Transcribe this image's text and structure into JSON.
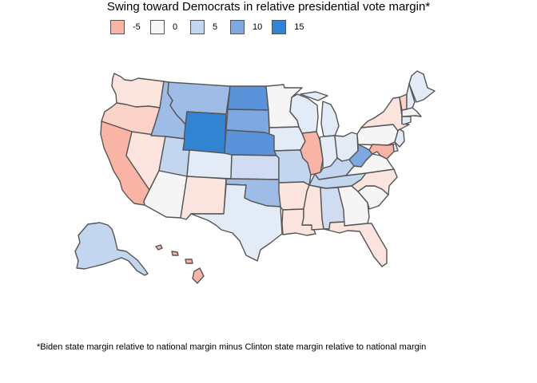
{
  "title": "Swing toward Democrats in relative presidential vote margin*",
  "legend": {
    "items": [
      {
        "label": "-5",
        "color": "#f9b4a6"
      },
      {
        "label": "0",
        "color": "#f7f7f7"
      },
      {
        "label": "5",
        "color": "#c3d6f0"
      },
      {
        "label": "10",
        "color": "#7fa8e0"
      },
      {
        "label": "15",
        "color": "#3283d1"
      }
    ]
  },
  "color_scale": {
    "neg_5": "#f9b4a6",
    "neg_3": "#fbd2c8",
    "neg_1": "#fbe4de",
    "zero": "#f5f5f5",
    "pos_1": "#e3ebf6",
    "pos_3": "#cfdcf1",
    "pos_5": "#c3d6f0",
    "pos_8": "#9fbce6",
    "pos_10": "#7fa8e0",
    "pos_12": "#5b93db",
    "pos_15": "#3283d1"
  },
  "states": {
    "WA": "neg_1",
    "OR": "neg_3",
    "CA": "neg_5",
    "NV": "neg_1",
    "ID": "pos_8",
    "MT": "pos_8",
    "WY": "pos_15",
    "UT": "pos_5",
    "AZ": "zero",
    "CO": "pos_1",
    "NM": "neg_1",
    "ND": "pos_12",
    "SD": "pos_10",
    "NE": "pos_12",
    "KS": "pos_3",
    "OK": "pos_8",
    "TX": "pos_1",
    "MN": "zero",
    "IA": "pos_1",
    "MO": "pos_5",
    "AR": "neg_1",
    "LA": "neg_1",
    "WI": "pos_1",
    "IL": "neg_5",
    "MI": "pos_1",
    "IN": "pos_1",
    "OH": "pos_1",
    "KY": "pos_5",
    "TN": "pos_5",
    "MS": "neg_1",
    "AL": "pos_3",
    "GA": "zero",
    "FL": "neg_1",
    "SC": "zero",
    "NC": "neg_1",
    "VA": "zero",
    "WV": "pos_10",
    "PA": "zero",
    "NY": "neg_1",
    "VT": "neg_3",
    "NH": "pos_1",
    "ME": "pos_1",
    "MA": "zero",
    "CT": "pos_1",
    "NJ": "pos_1",
    "DE": "pos_1",
    "MD": "neg_5",
    "AK": "pos_5",
    "HI": "neg_5"
  },
  "footnote": "*Biden state margin relative to national margin minus Clinton state margin relative to national margin"
}
